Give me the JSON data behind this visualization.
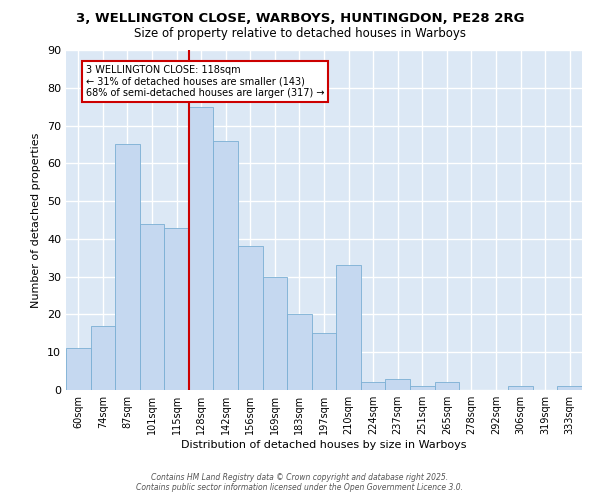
{
  "title": "3, WELLINGTON CLOSE, WARBOYS, HUNTINGDON, PE28 2RG",
  "subtitle": "Size of property relative to detached houses in Warboys",
  "xlabel": "Distribution of detached houses by size in Warboys",
  "ylabel": "Number of detached properties",
  "bar_labels": [
    "60sqm",
    "74sqm",
    "87sqm",
    "101sqm",
    "115sqm",
    "128sqm",
    "142sqm",
    "156sqm",
    "169sqm",
    "183sqm",
    "197sqm",
    "210sqm",
    "224sqm",
    "237sqm",
    "251sqm",
    "265sqm",
    "278sqm",
    "292sqm",
    "306sqm",
    "319sqm",
    "333sqm"
  ],
  "bar_values": [
    11,
    17,
    65,
    44,
    43,
    75,
    66,
    38,
    30,
    20,
    15,
    33,
    2,
    3,
    1,
    2,
    0,
    0,
    1,
    0,
    1
  ],
  "bar_color": "#c5d8f0",
  "bar_edge_color": "#7aafd4",
  "ylim": [
    0,
    90
  ],
  "yticks": [
    0,
    10,
    20,
    30,
    40,
    50,
    60,
    70,
    80,
    90
  ],
  "vline_x": 4.5,
  "vline_color": "#cc0000",
  "annotation_text": "3 WELLINGTON CLOSE: 118sqm\n← 31% of detached houses are smaller (143)\n68% of semi-detached houses are larger (317) →",
  "annotation_box_color": "#cc0000",
  "background_color": "#dce8f5",
  "footer": "Contains HM Land Registry data © Crown copyright and database right 2025.\nContains public sector information licensed under the Open Government Licence 3.0."
}
